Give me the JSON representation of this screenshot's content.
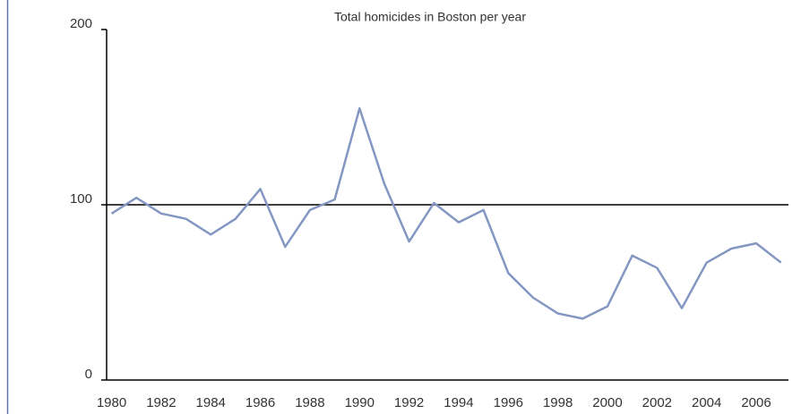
{
  "chart_data": {
    "type": "line",
    "title": "Total homicides in Boston per year",
    "x": [
      1980,
      1981,
      1982,
      1983,
      1984,
      1985,
      1986,
      1987,
      1988,
      1989,
      1990,
      1991,
      1992,
      1993,
      1994,
      1995,
      1996,
      1997,
      1998,
      1999,
      2000,
      2001,
      2002,
      2003,
      2004,
      2005,
      2006,
      2007
    ],
    "series": [
      {
        "name": "Total homicides",
        "color": "#8497c2",
        "values": [
          95,
          104,
          95,
          92,
          83,
          92,
          109,
          76,
          97,
          103,
          155,
          112,
          79,
          101,
          90,
          97,
          61,
          47,
          38,
          35,
          42,
          71,
          64,
          41,
          67,
          75,
          78,
          67
        ]
      }
    ],
    "xlim": [
      1979.8,
      2007.3
    ],
    "xticks": [
      1980,
      1982,
      1984,
      1986,
      1988,
      1990,
      1992,
      1994,
      1996,
      1998,
      2000,
      2002,
      2004,
      2006
    ],
    "ylim": [
      0,
      200
    ],
    "yticks": [
      0,
      100,
      200
    ],
    "reference_line": 100,
    "legend": false
  }
}
